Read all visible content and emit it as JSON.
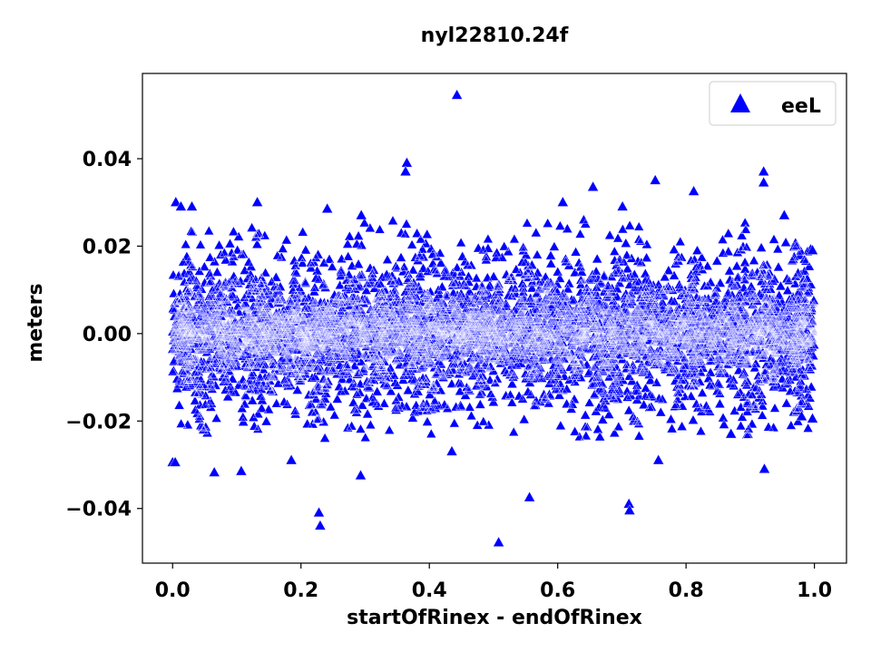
{
  "chart_data": {
    "type": "scatter",
    "title": "nyl22810.24f",
    "xlabel": "startOfRinex - endOfRinex",
    "ylabel": "meters",
    "xlim": [
      -0.047,
      1.05
    ],
    "ylim": [
      -0.0525,
      0.0595
    ],
    "xticks": [
      0.0,
      0.2,
      0.4,
      0.6,
      0.8,
      1.0
    ],
    "xtick_labels": [
      "0.0",
      "0.2",
      "0.4",
      "0.6",
      "0.8",
      "1.0"
    ],
    "yticks": [
      -0.04,
      -0.02,
      0.0,
      0.02,
      0.04
    ],
    "ytick_labels": [
      "−0.04",
      "−0.02",
      "0.00",
      "0.02",
      "0.04"
    ],
    "grid": false,
    "legend_position": "top-right",
    "series": [
      {
        "name": "eeL",
        "marker": "triangle-up",
        "color": "#0000ff",
        "points": [
          [
            0.443,
            0.0545
          ],
          [
            0.005,
            0.03
          ],
          [
            0.013,
            0.029
          ],
          [
            0.03,
            0.029
          ],
          [
            0.132,
            0.03
          ],
          [
            0.365,
            0.039
          ],
          [
            0.363,
            0.037
          ],
          [
            0.655,
            0.0335
          ],
          [
            0.752,
            0.035
          ],
          [
            0.921,
            0.037
          ],
          [
            0.921,
            0.0345
          ],
          [
            0.812,
            0.0325
          ],
          [
            0.241,
            0.0285
          ],
          [
            0.294,
            0.027
          ],
          [
            0.608,
            0.03
          ],
          [
            0.701,
            0.029
          ],
          [
            0.953,
            0.027
          ],
          [
            0.508,
            -0.0478
          ],
          [
            0.23,
            -0.044
          ],
          [
            0.228,
            -0.041
          ],
          [
            0.556,
            -0.0375
          ],
          [
            0.711,
            -0.039
          ],
          [
            0.712,
            -0.0405
          ],
          [
            0.065,
            -0.0318
          ],
          [
            0.107,
            -0.0315
          ],
          [
            0.293,
            -0.0325
          ],
          [
            0.922,
            -0.031
          ],
          [
            0.0,
            -0.0295
          ],
          [
            0.004,
            -0.0295
          ],
          [
            0.757,
            -0.029
          ],
          [
            0.185,
            -0.029
          ],
          [
            0.435,
            -0.027
          ],
          [
            0.98,
            -0.019
          ],
          [
            0.997,
            0.019
          ],
          [
            0.997,
            -0.0195
          ],
          [
            0.87,
            -0.023
          ]
        ]
      }
    ]
  }
}
